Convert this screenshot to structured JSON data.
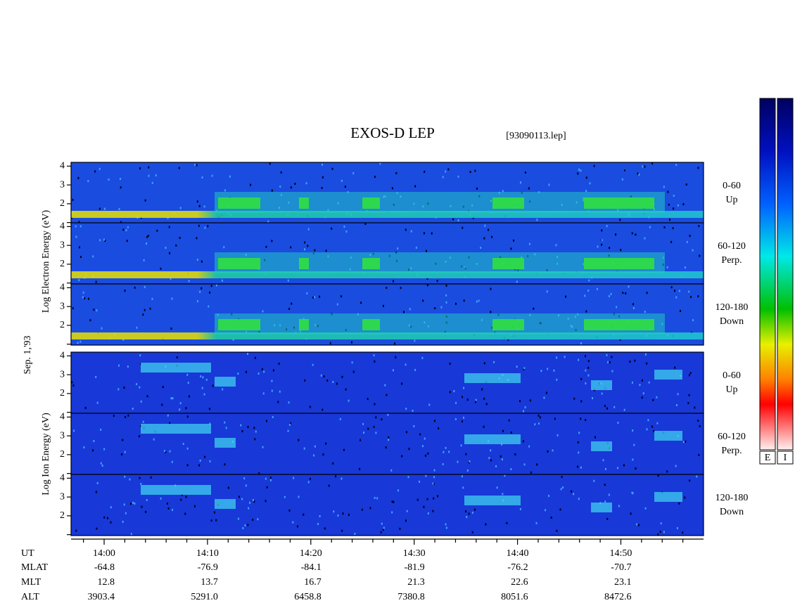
{
  "title": "EXOS-D LEP",
  "file": "[93090113.lep]",
  "date_label": "Sep. 1,'93",
  "electron_axis_label": "Log  Electron  Energy (eV)",
  "ion_axis_label": "Log  Ion  Energy (eV)",
  "electron_panels": [
    {
      "angle": "0-60",
      "direction": "Up"
    },
    {
      "angle": "60-120",
      "direction": "Perp."
    },
    {
      "angle": "120-180",
      "direction": "Down"
    }
  ],
  "ion_panels": [
    {
      "angle": "0-60",
      "direction": "Up"
    },
    {
      "angle": "60-120",
      "direction": "Perp."
    },
    {
      "angle": "120-180",
      "direction": "Down"
    }
  ],
  "panel_ylim": [
    0.95,
    4.2
  ],
  "yticks": [
    2,
    3,
    4
  ],
  "minor_yticks": [
    1
  ],
  "xlim": [
    836.8,
    898.0
  ],
  "xticks": [
    {
      "value": 840,
      "label": "14:00"
    },
    {
      "value": 850,
      "label": "14:10"
    },
    {
      "value": 860,
      "label": "14:20"
    },
    {
      "value": 870,
      "label": "14:30"
    },
    {
      "value": 880,
      "label": "14:40"
    },
    {
      "value": 890,
      "label": "14:50"
    }
  ],
  "minor_xticks": [
    838,
    842,
    844,
    846,
    848,
    852,
    854,
    856,
    858,
    862,
    864,
    866,
    868,
    872,
    874,
    876,
    878,
    882,
    884,
    886,
    888,
    892,
    894,
    896
  ],
  "orbit_labels": [
    "UT",
    "MLAT",
    "MLT",
    "ALT"
  ],
  "orbit_rows": [
    [
      "-64.8",
      "-76.9",
      "-84.1",
      "-81.9",
      "-76.2",
      "-70.7"
    ],
    [
      "12.8",
      "13.7",
      "16.7",
      "21.3",
      "22.6",
      "23.1"
    ],
    [
      "3903.4",
      "5291.0",
      "6458.8",
      "7380.8",
      "8051.6",
      "8472.6"
    ]
  ],
  "colorbar_labels": [
    "E",
    "I"
  ]
}
